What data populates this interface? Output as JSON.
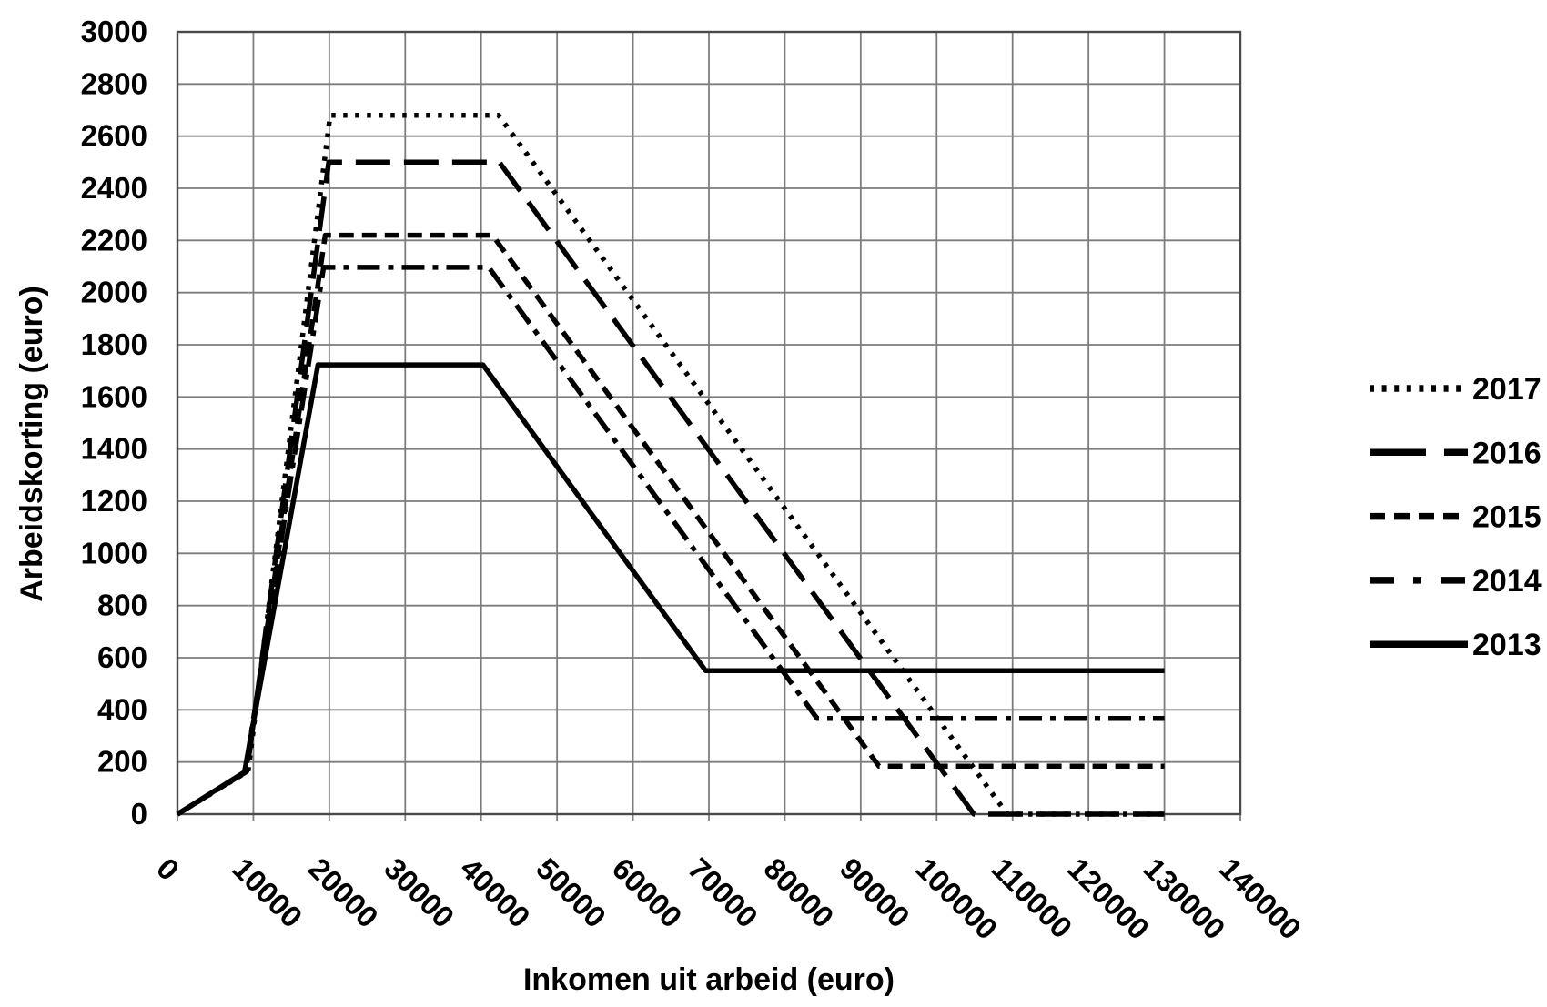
{
  "figure": {
    "background": "#ffffff",
    "grid_color": "#7d7d7d",
    "border_color": "#4a4a4a",
    "line_color": "#000000",
    "text_color": "#000000"
  },
  "chart_data": {
    "type": "line",
    "title": "",
    "xlabel": "Inkomen uit arbeid (euro)",
    "ylabel": "Arbeidskorting (euro)",
    "xlim": [
      0,
      140000
    ],
    "ylim": [
      0,
      3000
    ],
    "grid": true,
    "legend_position": "right",
    "x_tick_labels": [
      "0",
      "10000",
      "20000",
      "30000",
      "40000",
      "50000",
      "60000",
      "70000",
      "80000",
      "90000",
      "100000",
      "110000",
      "120000",
      "130000",
      "140000"
    ],
    "y_tick_labels": [
      "0",
      "200",
      "400",
      "600",
      "800",
      "1000",
      "1200",
      "1400",
      "1600",
      "1800",
      "2000",
      "2200",
      "2400",
      "2600",
      "2800",
      "3000"
    ],
    "x_tick_values": [
      0,
      10000,
      20000,
      30000,
      40000,
      50000,
      60000,
      70000,
      80000,
      90000,
      100000,
      110000,
      120000,
      130000,
      140000
    ],
    "y_tick_values": [
      0,
      200,
      400,
      600,
      800,
      1000,
      1200,
      1400,
      1600,
      1800,
      2000,
      2200,
      2400,
      2600,
      2800,
      3000
    ],
    "series": [
      {
        "name": "2017",
        "style": "dotted",
        "points": [
          [
            0,
            0
          ],
          [
            9309,
            165
          ],
          [
            20108,
            2680
          ],
          [
            42300,
            2680
          ],
          [
            109300,
            0
          ],
          [
            130000,
            0
          ]
        ]
      },
      {
        "name": "2016",
        "style": "long-dash",
        "points": [
          [
            0,
            0
          ],
          [
            9147,
            164
          ],
          [
            19922,
            2500
          ],
          [
            42400,
            2500
          ],
          [
            104900,
            0
          ],
          [
            130000,
            0
          ]
        ]
      },
      {
        "name": "2015",
        "style": "dash",
        "points": [
          [
            0,
            0
          ],
          [
            9010,
            163
          ],
          [
            19463,
            2220
          ],
          [
            41500,
            2220
          ],
          [
            92400,
            184
          ],
          [
            130000,
            184
          ]
        ]
      },
      {
        "name": "2014",
        "style": "dash-dot",
        "points": [
          [
            0,
            0
          ],
          [
            8913,
            161
          ],
          [
            19248,
            2097
          ],
          [
            41000,
            2097
          ],
          [
            84250,
            367
          ],
          [
            130000,
            367
          ]
        ]
      },
      {
        "name": "2013",
        "style": "solid",
        "points": [
          [
            0,
            0
          ],
          [
            8816,
            161
          ],
          [
            18509,
            1723
          ],
          [
            40248,
            1723
          ],
          [
            69573,
            550
          ],
          [
            130000,
            550
          ]
        ]
      }
    ]
  }
}
